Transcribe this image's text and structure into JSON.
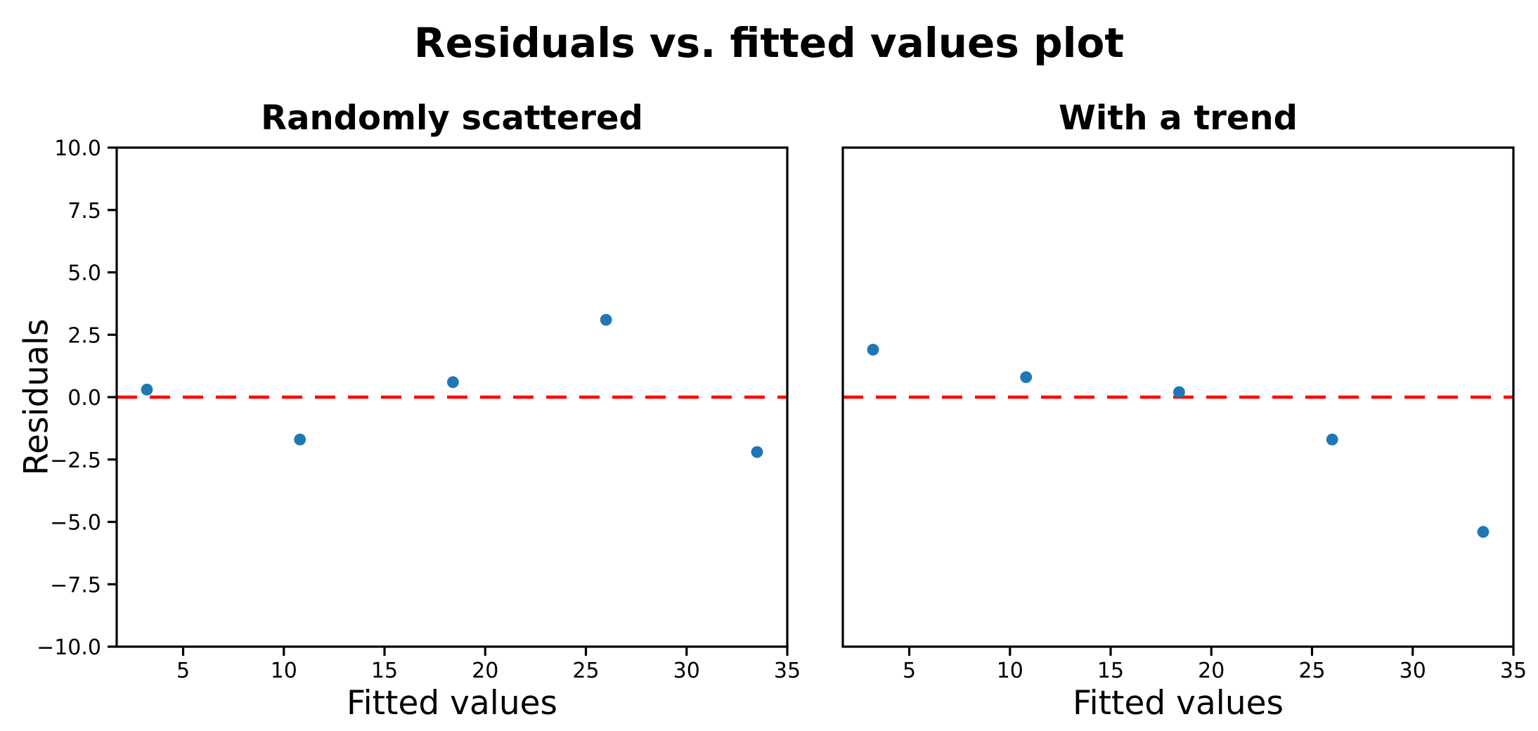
{
  "figure": {
    "suptitle": "Residuals vs. fitted values plot",
    "background": "#ffffff",
    "text_color": "#000000"
  },
  "chart_data": [
    {
      "type": "scatter",
      "title": "Randomly scattered",
      "xlabel": "Fitted values",
      "ylabel": "Residuals",
      "xlim": [
        1.7,
        35.0
      ],
      "ylim": [
        -10.0,
        10.0
      ],
      "xticks": [
        5,
        10,
        15,
        20,
        25,
        30,
        35
      ],
      "yticks": [
        -10.0,
        -7.5,
        -5.0,
        -2.5,
        0.0,
        2.5,
        5.0,
        7.5,
        10.0
      ],
      "show_y_tick_labels": true,
      "grid": false,
      "legend": null,
      "x": [
        3.2,
        10.8,
        18.4,
        26.0,
        33.5
      ],
      "y": [
        0.3,
        -1.7,
        0.6,
        3.1,
        -2.2
      ],
      "marker_color": "#1f77b4",
      "zero_line": {
        "y": 0.0,
        "color": "#ff0000",
        "style": "dashed"
      }
    },
    {
      "type": "scatter",
      "title": "With a trend",
      "xlabel": "Fitted values",
      "ylabel": "",
      "xlim": [
        1.7,
        35.0
      ],
      "ylim": [
        -10.0,
        10.0
      ],
      "xticks": [
        5,
        10,
        15,
        20,
        25,
        30,
        35
      ],
      "yticks": [
        -10.0,
        -7.5,
        -5.0,
        -2.5,
        0.0,
        2.5,
        5.0,
        7.5,
        10.0
      ],
      "show_y_tick_labels": false,
      "grid": false,
      "legend": null,
      "x": [
        3.2,
        10.8,
        18.4,
        26.0,
        33.5
      ],
      "y": [
        1.9,
        0.8,
        0.2,
        -1.7,
        -5.4
      ],
      "marker_color": "#1f77b4",
      "zero_line": {
        "y": 0.0,
        "color": "#ff0000",
        "style": "dashed"
      }
    }
  ]
}
